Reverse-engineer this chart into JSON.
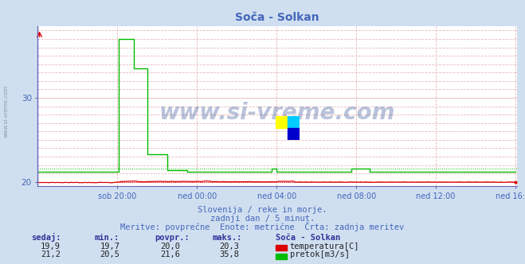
{
  "title": "Soča - Solkan",
  "background_color": "#d0dff0",
  "plot_bg_color": "#ffffff",
  "grid_h_color": "#e8b8b8",
  "grid_v_color": "#e8b8b8",
  "spine_color": "#6666bb",
  "x_tick_labels": [
    "sob 20:00",
    "ned 00:00",
    "ned 04:00",
    "ned 08:00",
    "ned 12:00",
    "ned 16:00"
  ],
  "x_tick_positions": [
    48,
    96,
    144,
    192,
    240,
    288
  ],
  "y_ticks": [
    20,
    30
  ],
  "ylim_bottom": 19.5,
  "ylim_top": 38.5,
  "xlim": [
    0,
    289
  ],
  "temp_color": "#dd0000",
  "flow_color": "#00bb00",
  "flow_avg_color": "#00bb00",
  "temp_avg": 20.0,
  "temp_min": 19.7,
  "temp_max": 20.3,
  "temp_now": 19.9,
  "flow_avg": 21.6,
  "flow_min": 20.5,
  "flow_max": 35.8,
  "flow_now": 21.2,
  "subtitle1": "Slovenija / reke in morje.",
  "subtitle2": "zadnji dan / 5 minut.",
  "subtitle3": "Meritve: povprečne  Enote: metrične  Črta: zadnja meritev",
  "watermark": "www.si-vreme.com",
  "label_color": "#4466bb",
  "stats_color": "#333399",
  "n_points": 289
}
